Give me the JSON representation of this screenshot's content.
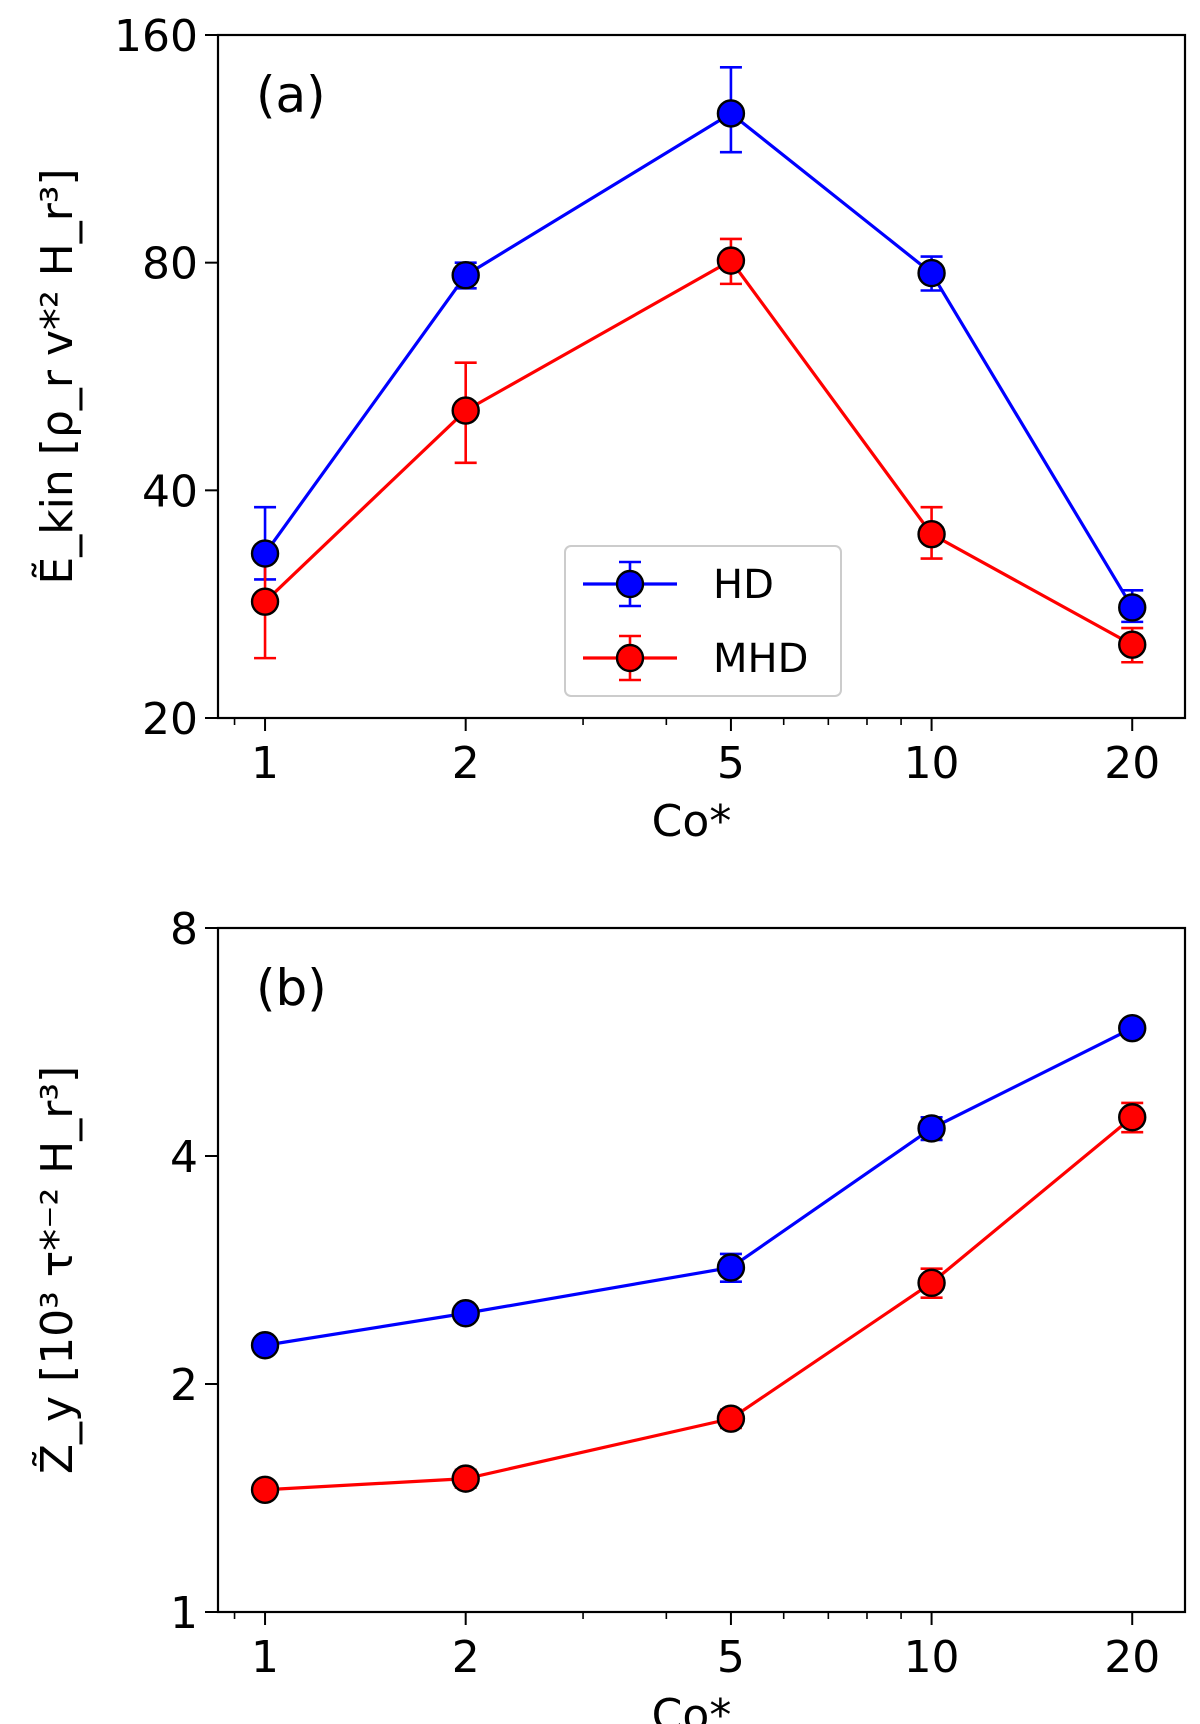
{
  "chart_data": [
    {
      "type": "line",
      "panel_label": "(a)",
      "xscale": "log",
      "yscale": "log",
      "xlim": [
        0.85,
        24
      ],
      "ylim": [
        20,
        160
      ],
      "xticks": [
        1,
        2,
        5,
        10,
        20
      ],
      "xtick_labels": [
        "1",
        "2",
        "5",
        "10",
        "20"
      ],
      "yticks": [
        20,
        40,
        80,
        160
      ],
      "ytick_labels": [
        "20",
        "40",
        "80",
        "160"
      ],
      "xlabel": "Co*",
      "ylabel": "Ẽ_kin [ρ_r v*² H_r³]",
      "x": [
        1,
        2,
        5,
        10,
        20
      ],
      "series": [
        {
          "name": "HD",
          "color": "#0000ff",
          "values": [
            33,
            77,
            126,
            77.5,
            28
          ],
          "err_low": [
            2.5,
            3,
            14,
            4,
            1.2
          ],
          "err_high": [
            5,
            3,
            19,
            4,
            1.5
          ]
        },
        {
          "name": "MHD",
          "color": "#ff0000",
          "values": [
            28.5,
            51,
            80.5,
            35,
            25
          ],
          "err_low": [
            4.5,
            7.5,
            5.5,
            2.5,
            1.3
          ],
          "err_high": [
            4,
            8,
            5.5,
            3,
            1.3
          ]
        }
      ],
      "legend": {
        "position": "lower-center",
        "entries": [
          "HD",
          "MHD"
        ]
      },
      "grid": false
    },
    {
      "type": "line",
      "panel_label": "(b)",
      "xscale": "log",
      "yscale": "log",
      "xlim": [
        0.85,
        24
      ],
      "ylim": [
        1,
        8
      ],
      "xticks": [
        1,
        2,
        5,
        10,
        20
      ],
      "xtick_labels": [
        "1",
        "2",
        "5",
        "10",
        "20"
      ],
      "yticks": [
        1,
        2,
        4,
        8
      ],
      "ytick_labels": [
        "1",
        "2",
        "4",
        "8"
      ],
      "xlabel": "Co*",
      "ylabel": "Z̃_y [10³ τ*⁻² H_r³]",
      "x": [
        1,
        2,
        5,
        10,
        20
      ],
      "series": [
        {
          "name": "HD",
          "color": "#0000ff",
          "values": [
            2.25,
            2.48,
            2.85,
            4.35,
            5.9
          ],
          "err_low": [
            0.03,
            0.04,
            0.12,
            0.15,
            0.05
          ],
          "err_high": [
            0.03,
            0.04,
            0.12,
            0.15,
            0.05
          ]
        },
        {
          "name": "MHD",
          "color": "#ff0000",
          "values": [
            1.45,
            1.5,
            1.8,
            2.72,
            4.5
          ],
          "err_low": [
            0.03,
            0.04,
            0.05,
            0.12,
            0.2
          ],
          "err_high": [
            0.03,
            0.04,
            0.05,
            0.12,
            0.2
          ]
        }
      ],
      "grid": false
    }
  ]
}
